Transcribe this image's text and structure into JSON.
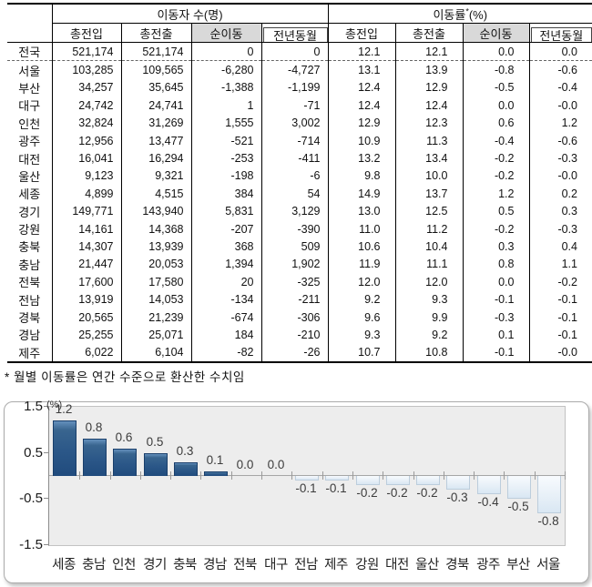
{
  "table": {
    "header": {
      "group_count": "이동자 수(명)",
      "group_rate": "이동률",
      "group_rate_sup": "*",
      "group_rate_unit": "(%)",
      "sub": [
        "총전입",
        "총전출",
        "순이동",
        "전년동월"
      ]
    },
    "rows": [
      {
        "region": "전국",
        "values": [
          "521,174",
          "521,174",
          "0",
          "0",
          "12.1",
          "12.1",
          "0.0",
          "0.0"
        ]
      },
      {
        "region": "서울",
        "values": [
          "103,285",
          "109,565",
          "-6,280",
          "-4,727",
          "13.1",
          "13.9",
          "-0.8",
          "-0.6"
        ]
      },
      {
        "region": "부산",
        "values": [
          "34,257",
          "35,645",
          "-1,388",
          "-1,199",
          "12.4",
          "12.9",
          "-0.5",
          "-0.4"
        ]
      },
      {
        "region": "대구",
        "values": [
          "24,742",
          "24,741",
          "1",
          "-71",
          "12.4",
          "12.4",
          "0.0",
          "-0.0"
        ]
      },
      {
        "region": "인천",
        "values": [
          "32,824",
          "31,269",
          "1,555",
          "3,002",
          "12.9",
          "12.3",
          "0.6",
          "1.2"
        ]
      },
      {
        "region": "광주",
        "values": [
          "12,956",
          "13,477",
          "-521",
          "-714",
          "10.9",
          "11.3",
          "-0.4",
          "-0.6"
        ]
      },
      {
        "region": "대전",
        "values": [
          "16,041",
          "16,294",
          "-253",
          "-411",
          "13.2",
          "13.4",
          "-0.2",
          "-0.3"
        ]
      },
      {
        "region": "울산",
        "values": [
          "9,123",
          "9,321",
          "-198",
          "-6",
          "9.8",
          "10.0",
          "-0.2",
          "-0.0"
        ]
      },
      {
        "region": "세종",
        "values": [
          "4,899",
          "4,515",
          "384",
          "54",
          "14.9",
          "13.7",
          "1.2",
          "0.2"
        ]
      },
      {
        "region": "경기",
        "values": [
          "149,771",
          "143,940",
          "5,831",
          "3,129",
          "13.0",
          "12.5",
          "0.5",
          "0.3"
        ]
      },
      {
        "region": "강원",
        "values": [
          "14,161",
          "14,368",
          "-207",
          "-390",
          "11.0",
          "11.2",
          "-0.2",
          "-0.3"
        ]
      },
      {
        "region": "충북",
        "values": [
          "14,307",
          "13,939",
          "368",
          "509",
          "10.6",
          "10.4",
          "0.3",
          "0.4"
        ]
      },
      {
        "region": "충남",
        "values": [
          "21,447",
          "20,053",
          "1,394",
          "1,902",
          "11.9",
          "11.1",
          "0.8",
          "1.1"
        ]
      },
      {
        "region": "전북",
        "values": [
          "17,600",
          "17,580",
          "20",
          "-325",
          "12.0",
          "12.0",
          "0.0",
          "-0.2"
        ]
      },
      {
        "region": "전남",
        "values": [
          "13,919",
          "14,053",
          "-134",
          "-211",
          "9.2",
          "9.3",
          "-0.1",
          "-0.1"
        ]
      },
      {
        "region": "경북",
        "values": [
          "20,565",
          "21,239",
          "-674",
          "-306",
          "9.6",
          "9.9",
          "-0.3",
          "-0.1"
        ]
      },
      {
        "region": "경남",
        "values": [
          "25,255",
          "25,071",
          "184",
          "-210",
          "9.3",
          "9.2",
          "0.1",
          "-0.1"
        ]
      },
      {
        "region": "제주",
        "values": [
          "6,022",
          "6,104",
          "-82",
          "-26",
          "10.7",
          "10.8",
          "-0.1",
          "-0.0"
        ]
      }
    ]
  },
  "footnote": "* 월별 이동률은 연간 수준으로 환산한 수치임",
  "chart_data": {
    "type": "bar",
    "title": "",
    "unit_label": "(%)",
    "categories": [
      "세종",
      "충남",
      "인천",
      "경기",
      "충북",
      "경남",
      "전북",
      "대구",
      "전남",
      "제주",
      "강원",
      "대전",
      "울산",
      "경북",
      "광주",
      "부산",
      "서울"
    ],
    "values": [
      1.2,
      0.8,
      0.6,
      0.5,
      0.3,
      0.1,
      0.0,
      0.0,
      -0.1,
      -0.1,
      -0.2,
      -0.2,
      -0.2,
      -0.3,
      -0.4,
      -0.5,
      -0.8
    ],
    "value_labels": [
      "1.2",
      "0.8",
      "0.6",
      "0.5",
      "0.3",
      "0.1",
      "0.0",
      "0.0",
      "-0.1",
      "-0.1",
      "-0.2",
      "-0.2",
      "-0.2",
      "-0.3",
      "-0.4",
      "-0.5",
      "-0.8"
    ],
    "ylim": [
      -1.5,
      1.5
    ],
    "yticks": [
      1.5,
      0.5,
      -0.5,
      -1.5
    ],
    "grid": false,
    "legend": "none",
    "colors": {
      "positive_bar": "#2b5788",
      "negative_bar": "#e6eff7",
      "plot_bg": "#ededed"
    }
  }
}
